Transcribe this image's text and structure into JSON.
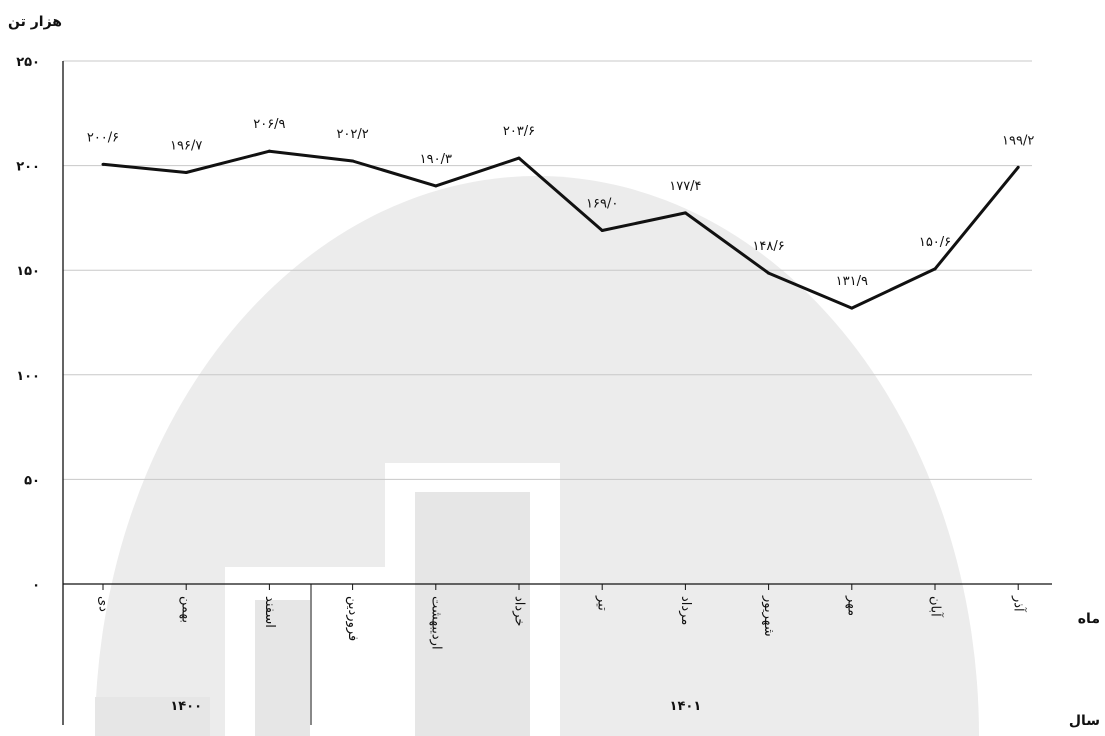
{
  "chart_data": {
    "type": "line",
    "ylabel": "هزار تن",
    "ylim": [
      0,
      250
    ],
    "yticks": [
      0,
      50,
      100,
      150,
      200,
      250
    ],
    "ytick_labels": [
      "۰",
      "۵۰",
      "۱۰۰",
      "۱۵۰",
      "۲۰۰",
      "۲۵۰"
    ],
    "categories": [
      "دی",
      "بهمن",
      "اسفند",
      "فروردین",
      "اردیبهشت",
      "خرداد",
      "تیر",
      "مرداد",
      "شهریور",
      "مهر",
      "آبان",
      "آذر"
    ],
    "values": [
      200.6,
      196.7,
      206.9,
      202.2,
      190.3,
      203.6,
      169.0,
      177.4,
      148.6,
      131.9,
      150.6,
      199.2
    ],
    "value_labels": [
      "۲۰۰/۶",
      "۱۹۶/۷",
      "۲۰۶/۹",
      "۲۰۲/۲",
      "۱۹۰/۳",
      "۲۰۳/۶",
      "۱۶۹/۰",
      "۱۷۷/۴",
      "۱۴۸/۶",
      "۱۳۱/۹",
      "۱۵۰/۶",
      "۱۹۹/۲"
    ],
    "x_axis_title": "ماه",
    "year_axis_title": "سال",
    "years": [
      {
        "label": "۱۴۰۰",
        "months": 3
      },
      {
        "label": "۱۴۰۱",
        "months": 9
      }
    ],
    "grid": true,
    "line_color": "#111111",
    "grid_color": "#c8c8c8",
    "watermark_color": "#ececec"
  }
}
